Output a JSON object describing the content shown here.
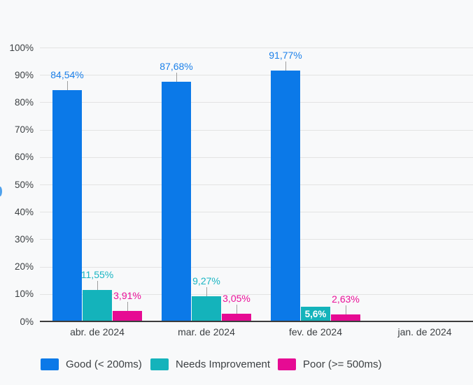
{
  "chart_data": {
    "type": "bar",
    "title": "",
    "categories": [
      "abr. de 2024",
      "mar. de 2024",
      "fev. de 2024",
      "jan. de 2024"
    ],
    "series": [
      {
        "name": "Good (< 200ms)",
        "color": "#0b79e8",
        "label_color": "#1c80e9",
        "values": [
          84.54,
          87.68,
          91.77,
          null
        ],
        "labels": [
          "84,54%",
          "87,68%",
          "91,77%",
          null
        ],
        "label_positions": [
          "above",
          "above",
          "above",
          null
        ]
      },
      {
        "name": "Needs Improvement",
        "color": "#14b3bb",
        "label_color": "#1ab5c3",
        "values": [
          11.55,
          9.27,
          5.6,
          null
        ],
        "labels": [
          "11,55%",
          "9,27%",
          "5,6%",
          null
        ],
        "label_positions": [
          "above",
          "above",
          "inside",
          null
        ]
      },
      {
        "name": "Poor (>= 500ms)",
        "color": "#e60b93",
        "label_color": "#ea1099",
        "values": [
          3.91,
          3.05,
          2.63,
          null
        ],
        "labels": [
          "3,91%",
          "3,05%",
          "2,63%",
          null
        ],
        "label_positions": [
          "above",
          "above",
          "above",
          null
        ]
      }
    ],
    "y_ticks": [
      "0%",
      "10%",
      "20%",
      "30%",
      "40%",
      "50%",
      "60%",
      "70%",
      "80%",
      "90%",
      "100%"
    ],
    "y_tick_values": [
      0,
      10,
      20,
      30,
      40,
      50,
      60,
      70,
      80,
      90,
      100
    ],
    "ylim": [
      0,
      100
    ],
    "xlabel": "",
    "ylabel": "",
    "grid": true,
    "legend_position": "bottom",
    "colors": {
      "background": "#f8f9fa",
      "gridline": "#e3e3e3",
      "axis_line": "#3c3c3c",
      "tick_text": "#3c4043",
      "leader_line": "#9e9e9e",
      "inside_label_text": "#ffffff",
      "axis_title_fragment": "#4fa1ec"
    }
  }
}
